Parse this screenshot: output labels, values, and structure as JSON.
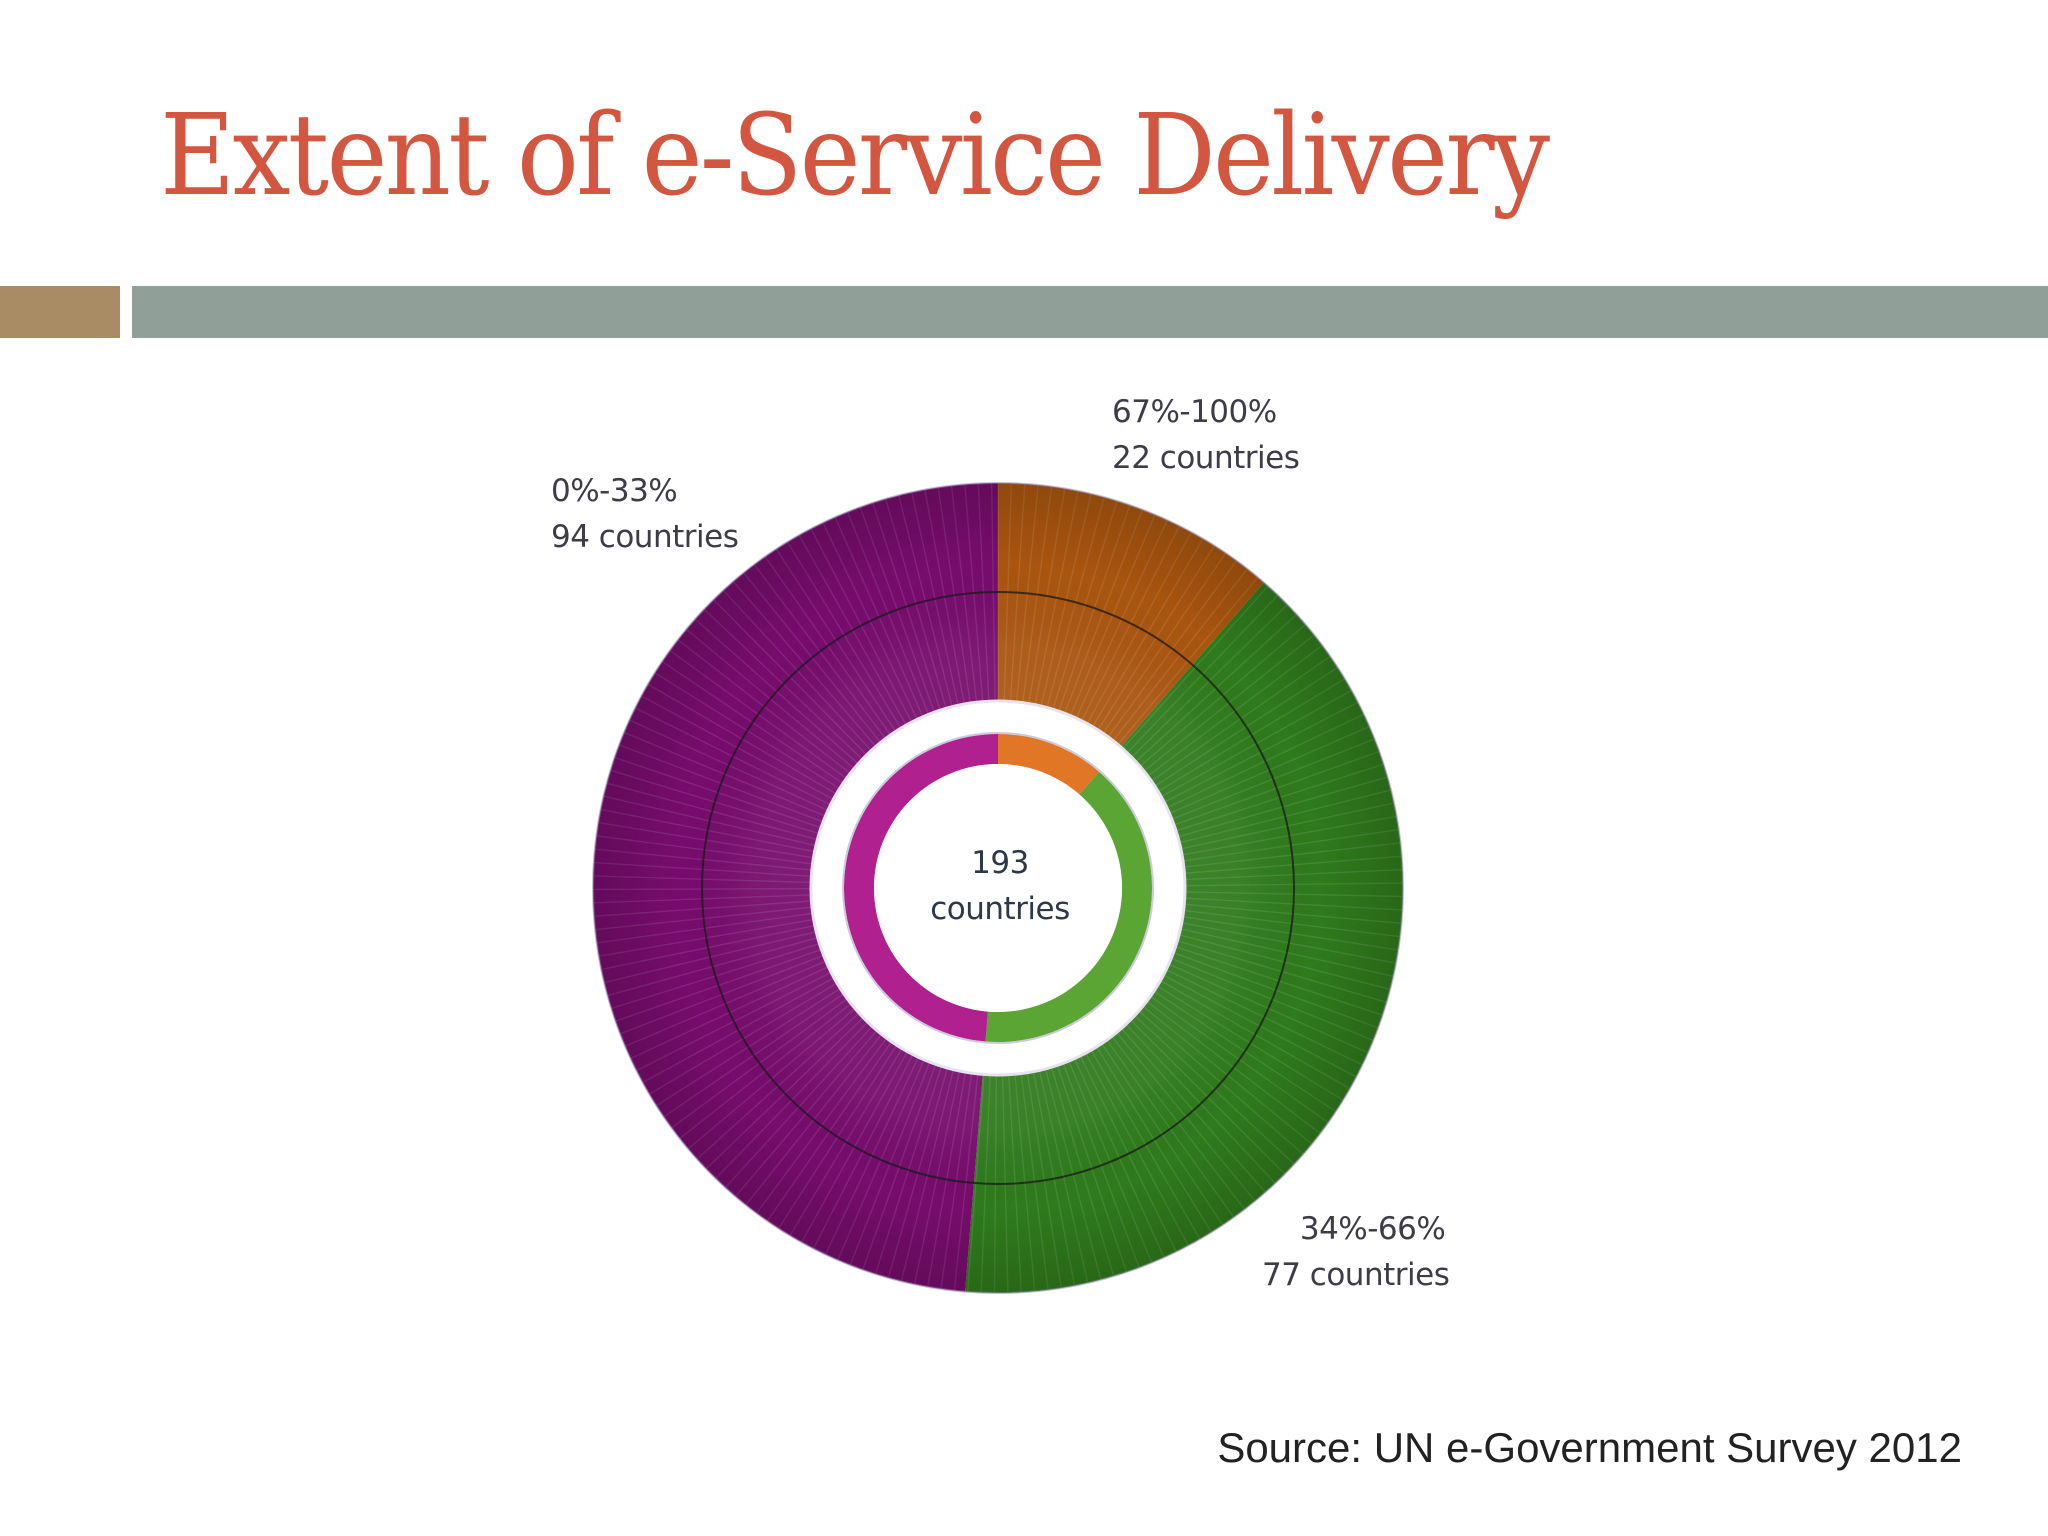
{
  "slide": {
    "title": "Extent of e-Service Delivery",
    "source": "Source: UN e-Government Survey 2012",
    "colors": {
      "title": "#d35640",
      "accent_bar": "#a98b64",
      "main_bar": "#909f98"
    }
  },
  "chart_data": {
    "type": "pie",
    "subtype": "double-ring donut",
    "title": "Extent of e-Service Delivery",
    "center_label": {
      "value": "193",
      "unit": "countries"
    },
    "total": 193,
    "start_angle_deg": 0,
    "direction": "clockwise",
    "categories": [
      "67%-100%",
      "34%-66%",
      "0%-33%"
    ],
    "values": [
      22,
      77,
      94
    ],
    "series": [
      {
        "name": "67%-100%",
        "value": 22,
        "label_line1": "67%-100%",
        "label_line2": "22 countries",
        "outer_color": "#a9550f",
        "inner_color": "#e07626"
      },
      {
        "name": "34%-66%",
        "value": 77,
        "label_line1": "34%-66%",
        "label_line2": "77 countries",
        "outer_color": "#2f7a1c",
        "inner_color": "#5ba535"
      },
      {
        "name": "0%-33%",
        "value": 94,
        "label_line1": "0%-33%",
        "label_line2": "94 countries",
        "outer_color": "#760c6c",
        "inner_color": "#b0208e"
      }
    ],
    "xlabel": "",
    "ylabel": "",
    "legend": "none (direct labels)"
  }
}
